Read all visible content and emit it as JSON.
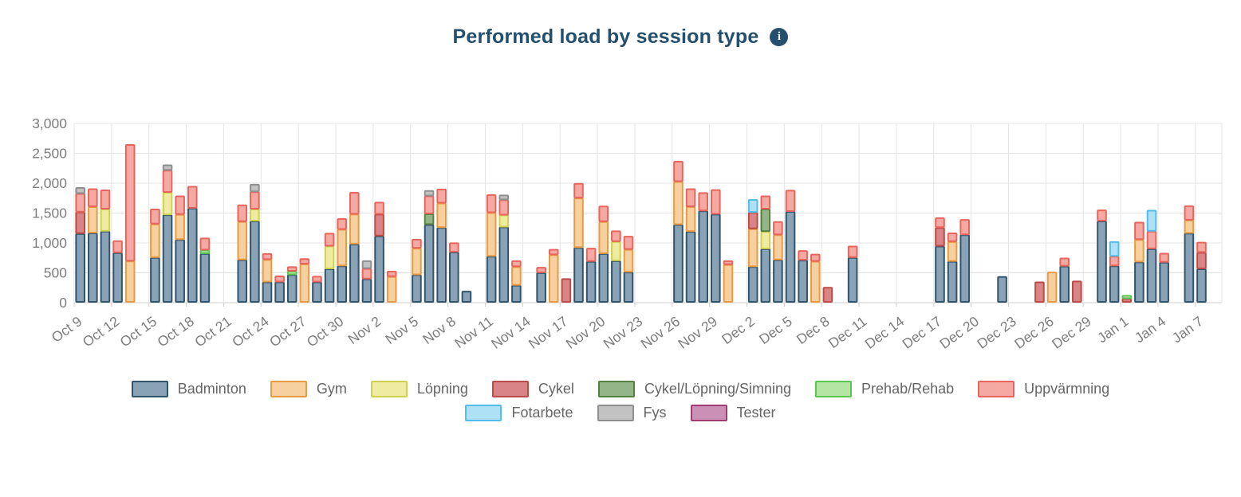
{
  "header": {
    "title": "Performed load by session type",
    "info_icon_glyph": "i"
  },
  "chart_data": {
    "type": "bar",
    "stacked": true,
    "title": "Performed load by session type",
    "xlabel": "",
    "ylabel": "",
    "ylim": [
      0,
      3000
    ],
    "ytick_step": 500,
    "ytick_labels": [
      "0",
      "500",
      "1,000",
      "1,500",
      "2,000",
      "2,500",
      "3,000"
    ],
    "grid": true,
    "legend_position": "bottom",
    "x_axis_start": "Oct 9",
    "x_axis_end": "Jan 7",
    "x_total_day_slots": 91,
    "xtick_every_days": 3,
    "xtick_labels": [
      "Oct 9",
      "Oct 12",
      "Oct 15",
      "Oct 18",
      "Oct 21",
      "Oct 24",
      "Oct 27",
      "Oct 30",
      "Nov 2",
      "Nov 5",
      "Nov 8",
      "Nov 11",
      "Nov 14",
      "Nov 17",
      "Nov 20",
      "Nov 23",
      "Nov 26",
      "Nov 29",
      "Dec 2",
      "Dec 5",
      "Dec 8",
      "Dec 11",
      "Dec 14",
      "Dec 17",
      "Dec 20",
      "Dec 23",
      "Dec 26",
      "Dec 29",
      "Jan 1",
      "Jan 4",
      "Jan 7"
    ],
    "categories": [
      {
        "name": "Badminton",
        "fill": "#8aa2b5",
        "stroke": "#31546d"
      },
      {
        "name": "Gym",
        "fill": "#f6d09f",
        "stroke": "#e89b43"
      },
      {
        "name": "Löpning",
        "fill": "#efeca2",
        "stroke": "#cfd04e"
      },
      {
        "name": "Cykel",
        "fill": "#da8585",
        "stroke": "#bc4a47"
      },
      {
        "name": "Cykel/Löpning/Simning",
        "fill": "#93b587",
        "stroke": "#55813f"
      },
      {
        "name": "Prehab/Rehab",
        "fill": "#b5e5a5",
        "stroke": "#5bc64f"
      },
      {
        "name": "Uppvärmning",
        "fill": "#f4aaa2",
        "stroke": "#e9655c"
      },
      {
        "name": "Fotarbete",
        "fill": "#aee1f6",
        "stroke": "#53bce8"
      },
      {
        "name": "Fys",
        "fill": "#c2c2c2",
        "stroke": "#8f8f8f"
      },
      {
        "name": "Tester",
        "fill": "#cb90b5",
        "stroke": "#a23b74"
      }
    ],
    "legend_rows": [
      7,
      3
    ],
    "bars": [
      {
        "d": 0,
        "s": [
          [
            0,
            1150
          ],
          [
            3,
            360
          ],
          [
            6,
            310
          ],
          [
            8,
            100
          ]
        ]
      },
      {
        "d": 1,
        "s": [
          [
            0,
            1160
          ],
          [
            1,
            440
          ],
          [
            6,
            300
          ]
        ]
      },
      {
        "d": 2,
        "s": [
          [
            0,
            1190
          ],
          [
            2,
            370
          ],
          [
            6,
            320
          ]
        ]
      },
      {
        "d": 3,
        "s": [
          [
            0,
            830
          ],
          [
            6,
            200
          ]
        ]
      },
      {
        "d": 4,
        "s": [
          [
            1,
            690
          ],
          [
            6,
            1950
          ]
        ]
      },
      {
        "d": 6,
        "s": [
          [
            0,
            750
          ],
          [
            1,
            560
          ],
          [
            6,
            250
          ]
        ]
      },
      {
        "d": 7,
        "s": [
          [
            0,
            1465
          ],
          [
            2,
            375
          ],
          [
            6,
            370
          ],
          [
            8,
            90
          ]
        ]
      },
      {
        "d": 8,
        "s": [
          [
            0,
            1050
          ],
          [
            1,
            420
          ],
          [
            6,
            310
          ]
        ]
      },
      {
        "d": 9,
        "s": [
          [
            0,
            1575
          ],
          [
            6,
            365
          ]
        ]
      },
      {
        "d": 10,
        "s": [
          [
            0,
            815
          ],
          [
            5,
            60
          ],
          [
            6,
            200
          ]
        ]
      },
      {
        "d": 13,
        "s": [
          [
            0,
            710
          ],
          [
            1,
            640
          ],
          [
            6,
            280
          ]
        ]
      },
      {
        "d": 14,
        "s": [
          [
            0,
            1360
          ],
          [
            2,
            200
          ],
          [
            6,
            290
          ],
          [
            8,
            125
          ]
        ]
      },
      {
        "d": 15,
        "s": [
          [
            0,
            340
          ],
          [
            1,
            375
          ],
          [
            6,
            100
          ]
        ]
      },
      {
        "d": 16,
        "s": [
          [
            0,
            340
          ],
          [
            6,
            100
          ]
        ]
      },
      {
        "d": 17,
        "s": [
          [
            0,
            460
          ],
          [
            5,
            60
          ],
          [
            6,
            75
          ]
        ]
      },
      {
        "d": 18,
        "s": [
          [
            1,
            640
          ],
          [
            6,
            90
          ]
        ]
      },
      {
        "d": 19,
        "s": [
          [
            0,
            340
          ],
          [
            6,
            95
          ]
        ]
      },
      {
        "d": 20,
        "s": [
          [
            0,
            560
          ],
          [
            2,
            380
          ],
          [
            6,
            215
          ]
        ]
      },
      {
        "d": 21,
        "s": [
          [
            0,
            610
          ],
          [
            1,
            610
          ],
          [
            6,
            180
          ]
        ]
      },
      {
        "d": 22,
        "s": [
          [
            0,
            975
          ],
          [
            1,
            500
          ],
          [
            6,
            365
          ]
        ]
      },
      {
        "d": 23,
        "s": [
          [
            0,
            390
          ],
          [
            6,
            175
          ],
          [
            8,
            130
          ]
        ]
      },
      {
        "d": 24,
        "s": [
          [
            0,
            1110
          ],
          [
            3,
            365
          ],
          [
            6,
            200
          ]
        ]
      },
      {
        "d": 25,
        "s": [
          [
            1,
            430
          ],
          [
            6,
            90
          ]
        ]
      },
      {
        "d": 27,
        "s": [
          [
            0,
            460
          ],
          [
            1,
            445
          ],
          [
            6,
            150
          ]
        ]
      },
      {
        "d": 28,
        "s": [
          [
            0,
            1300
          ],
          [
            4,
            180
          ],
          [
            6,
            300
          ],
          [
            8,
            90
          ]
        ]
      },
      {
        "d": 29,
        "s": [
          [
            0,
            1250
          ],
          [
            1,
            410
          ],
          [
            6,
            235
          ]
        ]
      },
      {
        "d": 30,
        "s": [
          [
            0,
            840
          ],
          [
            6,
            155
          ]
        ]
      },
      {
        "d": 31,
        "s": [
          [
            0,
            185
          ]
        ]
      },
      {
        "d": 33,
        "s": [
          [
            0,
            770
          ],
          [
            1,
            730
          ],
          [
            6,
            300
          ]
        ]
      },
      {
        "d": 34,
        "s": [
          [
            0,
            1260
          ],
          [
            2,
            200
          ],
          [
            6,
            255
          ],
          [
            8,
            80
          ]
        ]
      },
      {
        "d": 35,
        "s": [
          [
            0,
            285
          ],
          [
            1,
            310
          ],
          [
            6,
            100
          ]
        ]
      },
      {
        "d": 37,
        "s": [
          [
            0,
            495
          ],
          [
            6,
            90
          ]
        ]
      },
      {
        "d": 38,
        "s": [
          [
            1,
            795
          ],
          [
            6,
            90
          ]
        ]
      },
      {
        "d": 39,
        "s": [
          [
            3,
            395
          ]
        ]
      },
      {
        "d": 40,
        "s": [
          [
            0,
            915
          ],
          [
            1,
            830
          ],
          [
            6,
            245
          ]
        ]
      },
      {
        "d": 41,
        "s": [
          [
            0,
            685
          ],
          [
            6,
            220
          ]
        ]
      },
      {
        "d": 42,
        "s": [
          [
            0,
            815
          ],
          [
            1,
            535
          ],
          [
            6,
            260
          ]
        ]
      },
      {
        "d": 43,
        "s": [
          [
            0,
            695
          ],
          [
            2,
            320
          ],
          [
            6,
            180
          ]
        ]
      },
      {
        "d": 44,
        "s": [
          [
            0,
            505
          ],
          [
            1,
            380
          ],
          [
            6,
            220
          ]
        ]
      },
      {
        "d": 48,
        "s": [
          [
            0,
            1300
          ],
          [
            1,
            720
          ],
          [
            6,
            340
          ]
        ]
      },
      {
        "d": 49,
        "s": [
          [
            0,
            1185
          ],
          [
            1,
            415
          ],
          [
            6,
            300
          ]
        ]
      },
      {
        "d": 50,
        "s": [
          [
            0,
            1530
          ],
          [
            6,
            305
          ]
        ]
      },
      {
        "d": 51,
        "s": [
          [
            0,
            1475
          ],
          [
            6,
            410
          ]
        ]
      },
      {
        "d": 52,
        "s": [
          [
            1,
            630
          ],
          [
            6,
            65
          ]
        ]
      },
      {
        "d": 54,
        "s": [
          [
            0,
            595
          ],
          [
            1,
            635
          ],
          [
            3,
            275
          ],
          [
            7,
            215
          ]
        ]
      },
      {
        "d": 55,
        "s": [
          [
            0,
            895
          ],
          [
            2,
            290
          ],
          [
            4,
            375
          ],
          [
            6,
            220
          ]
        ]
      },
      {
        "d": 56,
        "s": [
          [
            0,
            710
          ],
          [
            1,
            420
          ],
          [
            6,
            220
          ]
        ]
      },
      {
        "d": 57,
        "s": [
          [
            0,
            1520
          ],
          [
            6,
            355
          ]
        ]
      },
      {
        "d": 58,
        "s": [
          [
            0,
            705
          ],
          [
            6,
            160
          ]
        ]
      },
      {
        "d": 59,
        "s": [
          [
            1,
            685
          ],
          [
            6,
            120
          ]
        ]
      },
      {
        "d": 60,
        "s": [
          [
            3,
            250
          ]
        ]
      },
      {
        "d": 62,
        "s": [
          [
            0,
            750
          ],
          [
            6,
            190
          ]
        ]
      },
      {
        "d": 69,
        "s": [
          [
            0,
            940
          ],
          [
            3,
            310
          ],
          [
            6,
            165
          ]
        ]
      },
      {
        "d": 70,
        "s": [
          [
            0,
            685
          ],
          [
            1,
            330
          ],
          [
            6,
            145
          ]
        ]
      },
      {
        "d": 71,
        "s": [
          [
            0,
            1130
          ],
          [
            6,
            255
          ]
        ]
      },
      {
        "d": 74,
        "s": [
          [
            0,
            430
          ]
        ]
      },
      {
        "d": 77,
        "s": [
          [
            3,
            340
          ]
        ]
      },
      {
        "d": 78,
        "s": [
          [
            1,
            505
          ]
        ]
      },
      {
        "d": 79,
        "s": [
          [
            0,
            605
          ],
          [
            6,
            135
          ]
        ]
      },
      {
        "d": 80,
        "s": [
          [
            3,
            355
          ]
        ]
      },
      {
        "d": 82,
        "s": [
          [
            0,
            1360
          ],
          [
            6,
            185
          ]
        ]
      },
      {
        "d": 83,
        "s": [
          [
            0,
            610
          ],
          [
            6,
            160
          ],
          [
            7,
            245
          ]
        ]
      },
      {
        "d": 84,
        "s": [
          [
            3,
            60
          ],
          [
            5,
            55
          ]
        ]
      },
      {
        "d": 85,
        "s": [
          [
            0,
            675
          ],
          [
            1,
            375
          ],
          [
            6,
            290
          ]
        ]
      },
      {
        "d": 86,
        "s": [
          [
            0,
            895
          ],
          [
            6,
            295
          ],
          [
            7,
            350
          ]
        ]
      },
      {
        "d": 87,
        "s": [
          [
            0,
            670
          ],
          [
            6,
            150
          ]
        ]
      },
      {
        "d": 89,
        "s": [
          [
            0,
            1155
          ],
          [
            1,
            220
          ],
          [
            6,
            240
          ]
        ]
      },
      {
        "d": 90,
        "s": [
          [
            0,
            560
          ],
          [
            3,
            275
          ],
          [
            6,
            170
          ]
        ]
      }
    ]
  }
}
